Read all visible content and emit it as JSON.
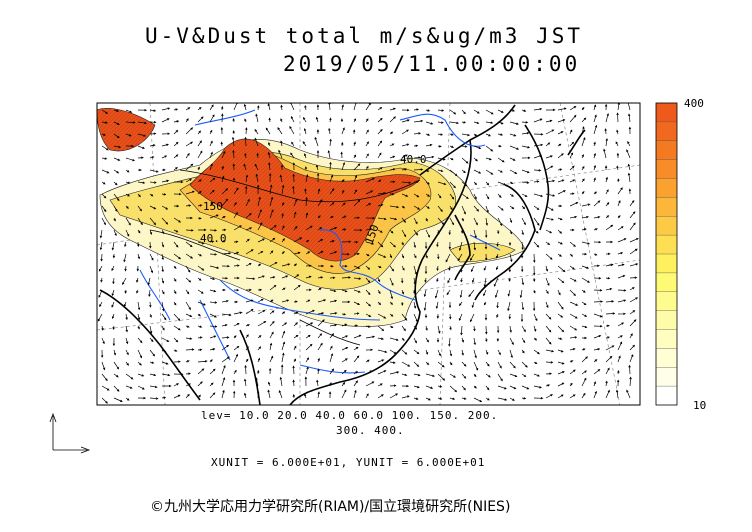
{
  "header": {
    "title": "U-V&Dust total m/s&ug/m3 JST",
    "datetime": "2019/05/11.00:00:00"
  },
  "map": {
    "contour_labels": [
      "40.0",
      "150",
      "40.0",
      "150"
    ],
    "colors": {
      "coast": "#000000",
      "river": "#1a5cff",
      "max_fill": "#e8501a",
      "mid_fill": "#f9e06b",
      "low_fill": "#fdf7c8"
    }
  },
  "colorbar": {
    "max_label": "400",
    "min_label": "10",
    "colors": [
      "#ee5a1c",
      "#f0691e",
      "#f47a22",
      "#f78c28",
      "#faa12e",
      "#fcb63a",
      "#fdca45",
      "#fede52",
      "#fef05e",
      "#fffa74",
      "#fffc8f",
      "#fffca9",
      "#fffdc0",
      "#fffed4",
      "#fffee6",
      "#ffffff"
    ]
  },
  "legend": {
    "lev_line1": "lev= 10.0 20.0 40.0 60.0 100. 150. 200.",
    "lev_line2": "300. 400.",
    "units": "XUNIT = 6.000E+01, YUNIT = 6.000E+01"
  },
  "footer": {
    "copyright": "©九州大学応用力学研究所(RIAM)/国立環境研究所(NIES)"
  }
}
